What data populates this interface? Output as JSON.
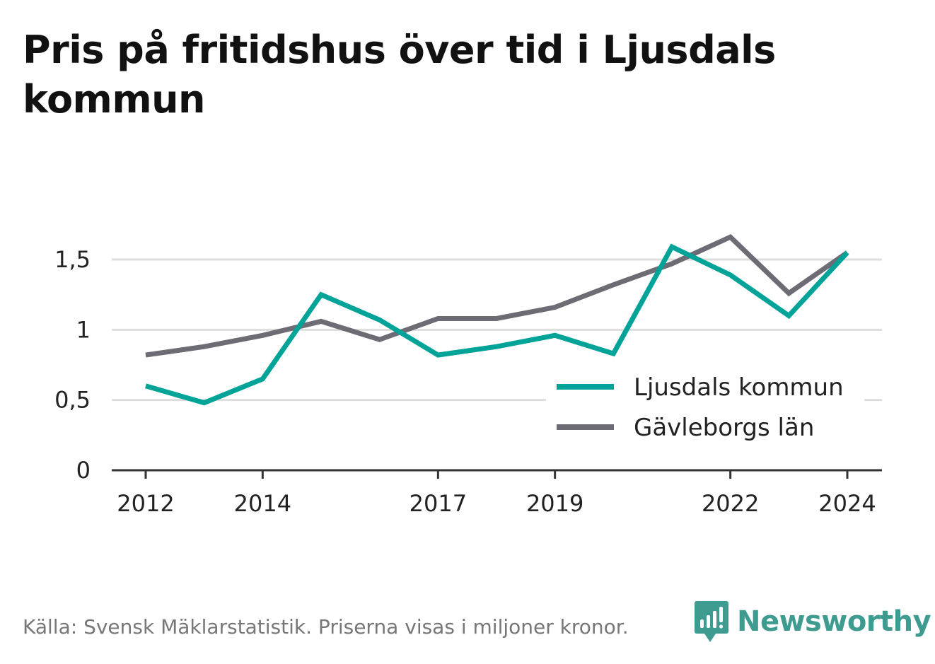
{
  "title": "Pris på fritidshus över tid i Ljusdals kommun",
  "source": "Källa: Svensk Mäklarstatistik. Priserna visas i miljoner kronor.",
  "brand": {
    "name": "Newsworthy",
    "color": "#3d9b90",
    "icon": "newsworthy-bar-chart-icon"
  },
  "chart_data": {
    "type": "line",
    "x": [
      2012,
      2013,
      2014,
      2015,
      2016,
      2017,
      2018,
      2019,
      2020,
      2021,
      2022,
      2023,
      2024
    ],
    "x_tick_labels": [
      "2012",
      "2014",
      "2017",
      "2019",
      "2022",
      "2024"
    ],
    "y_tick_labels": [
      "0",
      "0,5",
      "1",
      "1,5"
    ],
    "y_ticks": [
      0,
      0.5,
      1,
      1.5
    ],
    "ylim": [
      0,
      1.5
    ],
    "grid": true,
    "legend_position": "bottom-right",
    "series": [
      {
        "name": "Ljusdals kommun",
        "color": "#00a398",
        "values": [
          0.6,
          0.48,
          0.65,
          1.25,
          1.07,
          0.82,
          0.88,
          0.96,
          0.83,
          1.59,
          1.39,
          1.1,
          1.55
        ]
      },
      {
        "name": "Gävleborgs län",
        "color": "#6d6b73",
        "values": [
          0.82,
          0.88,
          0.96,
          1.06,
          0.93,
          1.08,
          1.08,
          1.16,
          1.32,
          1.47,
          1.66,
          1.26,
          1.55
        ]
      }
    ]
  }
}
